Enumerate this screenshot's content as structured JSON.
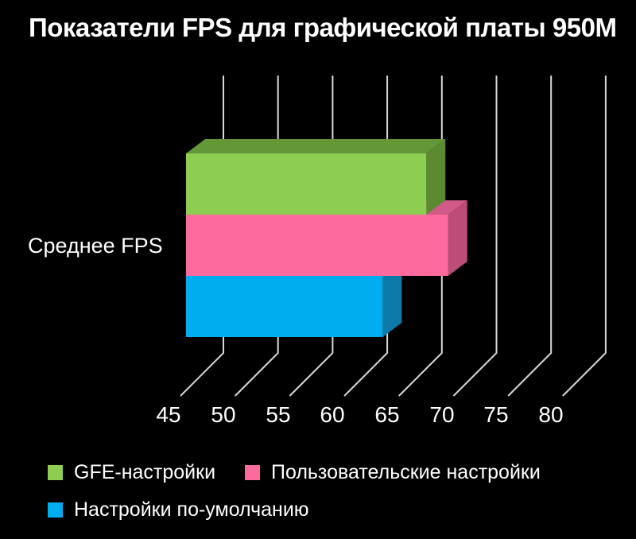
{
  "title": "Показатели FPS для графической платы 950M",
  "category_axis_label": "Среднее FPS",
  "chart_data": {
    "type": "bar",
    "orientation": "horizontal",
    "style": "3d",
    "title": "Показатели FPS для графической платы 950M",
    "categories": [
      "Среднее FPS"
    ],
    "series": [
      {
        "name": "GFE-настройки",
        "values": [
          67
        ],
        "color": "#8dce52",
        "color_top": "#649738",
        "color_side": "#5b8a33"
      },
      {
        "name": "Пользовательские настройки",
        "values": [
          69
        ],
        "color": "#fd6b9e",
        "color_top": "#d15a88",
        "color_side": "#bb4d78"
      },
      {
        "name": "Настройки по-умолчанию",
        "values": [
          63
        ],
        "color": "#00adee",
        "color_top": "#0d8abf",
        "color_side": "#0e7aa9"
      }
    ],
    "xticks": [
      45,
      50,
      55,
      60,
      65,
      70,
      75,
      80
    ],
    "xlim": [
      45,
      80
    ],
    "xlabel": "",
    "ylabel": "Среднее FPS",
    "grid": "vertical",
    "legend_position": "bottom",
    "background_color": "#000000",
    "text_color": "#ffffff",
    "gridline_color": "#d9d9d9"
  },
  "legend": {
    "items": [
      {
        "label": "GFE-настройки",
        "color": "#8dce52"
      },
      {
        "label": "Пользовательские настройки",
        "color": "#fd6b9e"
      },
      {
        "label": "Настройки по-умолчанию",
        "color": "#00adee"
      }
    ]
  }
}
